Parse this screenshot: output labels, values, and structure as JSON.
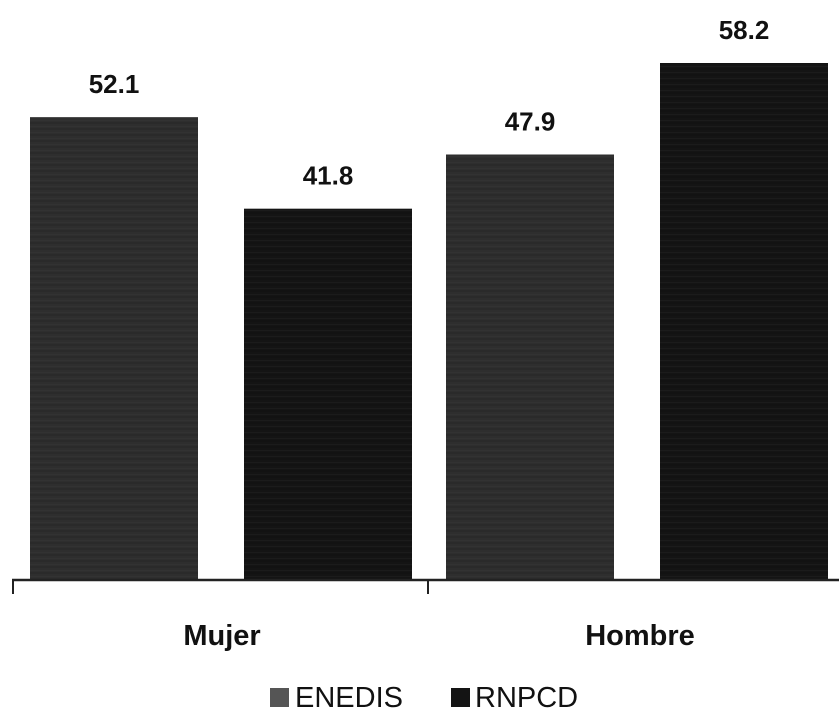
{
  "chart_data": {
    "type": "bar",
    "categories": [
      "Mujer",
      "Hombre"
    ],
    "series": [
      {
        "name": "ENEDIS",
        "values": [
          52.1,
          47.9
        ],
        "color": "#2e2e2e"
      },
      {
        "name": "RNPCD",
        "values": [
          41.8,
          58.2
        ],
        "color": "#141414"
      }
    ],
    "value_labels": [
      [
        "52.1",
        "47.9"
      ],
      [
        "41.8",
        "58.2"
      ]
    ],
    "ylim": [
      0,
      58.2
    ],
    "grid": false,
    "legend_position": "bottom-center"
  }
}
